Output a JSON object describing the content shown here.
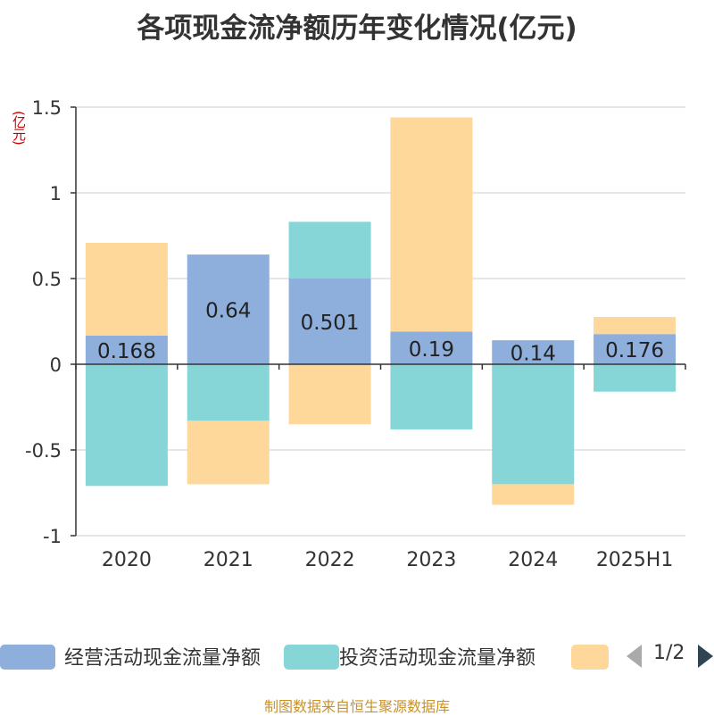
{
  "colors": {
    "operating": "#8eaedc",
    "investing": "#86d6d8",
    "financing": "#fed89b",
    "grid": "#cccccc",
    "axis": "#333333"
  },
  "chart_data": {
    "type": "bar",
    "stacked": true,
    "title": "各项现金流净额历年变化情况(亿元)",
    "ylabel": "(亿元)",
    "ylim": [
      -1,
      1.5
    ],
    "yticks": [
      -1,
      -0.5,
      0,
      0.5,
      1,
      1.5
    ],
    "ytick_labels": [
      "-1",
      "-0.5",
      "0",
      "0.5",
      "1",
      "1.5"
    ],
    "categories": [
      "2020",
      "2021",
      "2022",
      "2023",
      "2024",
      "2025H1"
    ],
    "series": [
      {
        "name": "经营活动现金流量净额",
        "color": "#8eaedc",
        "values": [
          0.168,
          0.64,
          0.501,
          0.19,
          0.14,
          0.176
        ],
        "labels": [
          "0.168",
          "0.64",
          "0.501",
          "0.19",
          "0.14",
          "0.176"
        ]
      },
      {
        "name": "投资活动现金流量净额",
        "color": "#86d6d8",
        "values": [
          -0.71,
          -0.33,
          0.33,
          -0.38,
          -0.7,
          -0.16
        ]
      },
      {
        "name": "",
        "color": "#fed89b",
        "values": [
          0.54,
          -0.37,
          -0.35,
          1.25,
          -0.12,
          0.1
        ]
      }
    ],
    "grid": true,
    "legend_position": "bottom"
  },
  "legend": {
    "items": [
      {
        "label": "经营活动现金流量净额",
        "color": "#8eaedc"
      },
      {
        "label": "投资活动现金流量净额",
        "color": "#86d6d8"
      },
      {
        "label": "",
        "color": "#fed89b"
      }
    ],
    "page": "1/2"
  },
  "footer": "制图数据来自恒生聚源数据库"
}
